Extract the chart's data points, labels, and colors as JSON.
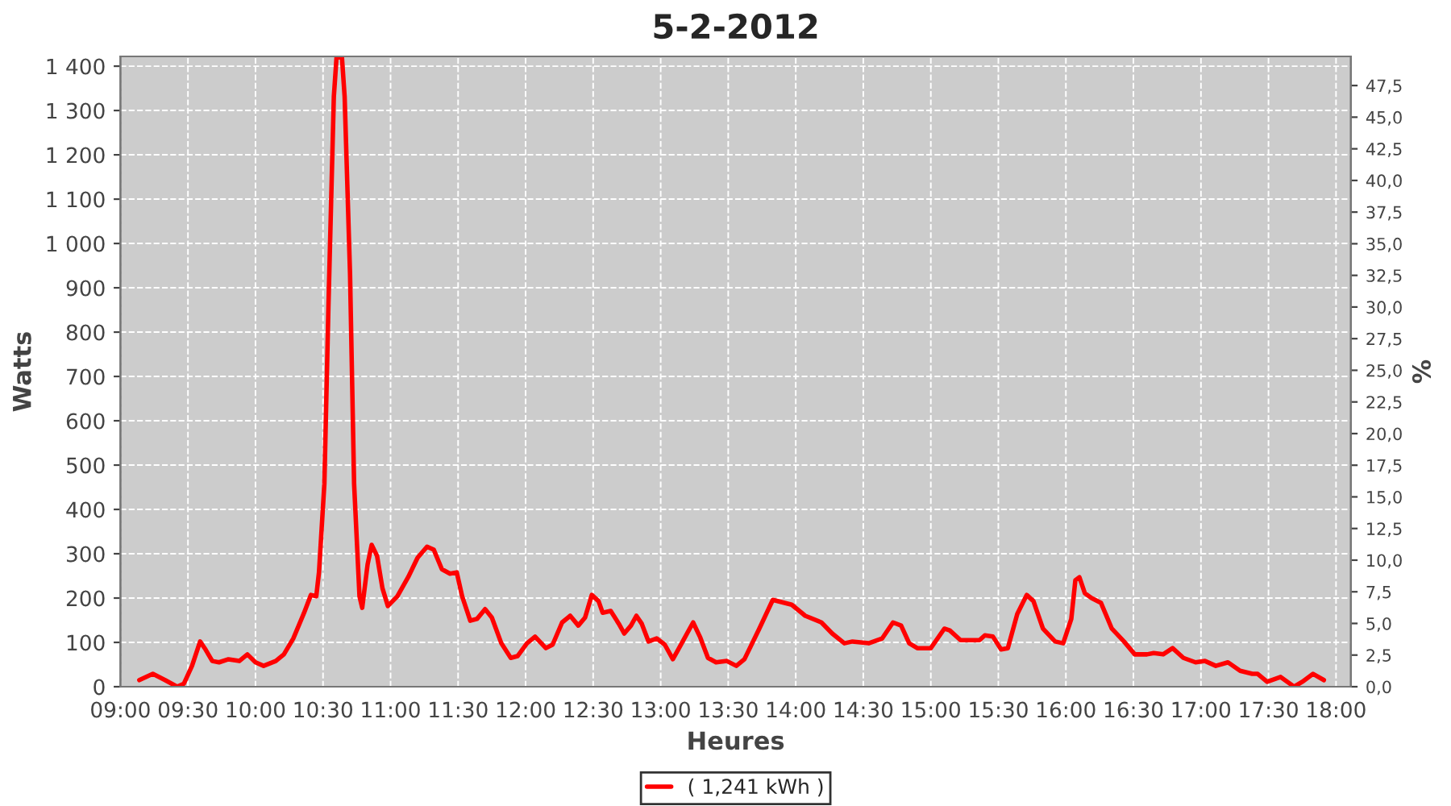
{
  "chart_data": {
    "type": "line",
    "title": "5-2-2012",
    "xlabel": "Heures",
    "ylabel": "Watts",
    "y2label": "%",
    "xlim": [
      9,
      18.11
    ],
    "ylim": [
      0,
      1422
    ],
    "y2lim": [
      0,
      49.8
    ],
    "xticks": [
      {
        "value": 9,
        "label": "09:00"
      },
      {
        "value": 9.5,
        "label": "09:30"
      },
      {
        "value": 10,
        "label": "10:00"
      },
      {
        "value": 10.5,
        "label": "10:30"
      },
      {
        "value": 11,
        "label": "11:00"
      },
      {
        "value": 11.5,
        "label": "11:30"
      },
      {
        "value": 12,
        "label": "12:00"
      },
      {
        "value": 12.5,
        "label": "12:30"
      },
      {
        "value": 13,
        "label": "13:00"
      },
      {
        "value": 13.5,
        "label": "13:30"
      },
      {
        "value": 14,
        "label": "14:00"
      },
      {
        "value": 14.5,
        "label": "14:30"
      },
      {
        "value": 15,
        "label": "15:00"
      },
      {
        "value": 15.5,
        "label": "15:30"
      },
      {
        "value": 16,
        "label": "16:00"
      },
      {
        "value": 16.5,
        "label": "16:30"
      },
      {
        "value": 17,
        "label": "17:00"
      },
      {
        "value": 17.5,
        "label": "17:30"
      },
      {
        "value": 18,
        "label": "18:00"
      }
    ],
    "yticks": [
      0,
      100,
      200,
      300,
      400,
      500,
      600,
      700,
      800,
      900,
      {
        "value": 1000,
        "label": "1 000"
      },
      {
        "value": 1100,
        "label": "1 100"
      },
      {
        "value": 1200,
        "label": "1 200"
      },
      {
        "value": 1300,
        "label": "1 300"
      },
      {
        "value": 1400,
        "label": "1 400"
      }
    ],
    "y2ticks": [
      {
        "value": 0,
        "label": "0,0"
      },
      {
        "value": 2.5,
        "label": "2,5"
      },
      {
        "value": 5,
        "label": "5,0"
      },
      {
        "value": 7.5,
        "label": "7,5"
      },
      {
        "value": 10,
        "label": "10,0"
      },
      {
        "value": 12.5,
        "label": "12,5"
      },
      {
        "value": 15,
        "label": "15,0"
      },
      {
        "value": 17.5,
        "label": "17,5"
      },
      {
        "value": 20,
        "label": "20,0"
      },
      {
        "value": 22.5,
        "label": "22,5"
      },
      {
        "value": 25,
        "label": "25,0"
      },
      {
        "value": 27.5,
        "label": "27,5"
      },
      {
        "value": 30,
        "label": "30,0"
      },
      {
        "value": 32.5,
        "label": "32,5"
      },
      {
        "value": 35,
        "label": "35,0"
      },
      {
        "value": 37.5,
        "label": "37,5"
      },
      {
        "value": 40,
        "label": "40,0"
      },
      {
        "value": 42.5,
        "label": "42,5"
      },
      {
        "value": 45,
        "label": "45,0"
      },
      {
        "value": 47.5,
        "label": "47,5"
      }
    ],
    "grid": true,
    "legend": "bottom",
    "marker": "none",
    "line_style": "solid",
    "series": [
      {
        "name": "( 1,241 kWh )",
        "color": "#ff0000",
        "x": [
          9.14,
          9.24,
          9.33,
          9.42,
          9.47,
          9.53,
          9.59,
          9.63,
          9.68,
          9.73,
          9.8,
          9.88,
          9.94,
          10.0,
          10.06,
          10.15,
          10.21,
          10.28,
          10.36,
          10.41,
          10.45,
          10.47,
          10.51,
          10.54,
          10.58,
          10.6,
          10.64,
          10.66,
          10.7,
          10.73,
          10.77,
          10.79,
          10.83,
          10.86,
          10.9,
          10.94,
          10.98,
          11.05,
          11.13,
          11.2,
          11.27,
          11.32,
          11.38,
          11.44,
          11.49,
          11.53,
          11.59,
          11.64,
          11.7,
          11.75,
          11.82,
          11.89,
          11.94,
          12.01,
          12.07,
          12.15,
          12.2,
          12.27,
          12.33,
          12.39,
          12.44,
          12.49,
          12.54,
          12.57,
          12.63,
          12.69,
          12.73,
          12.78,
          12.82,
          12.86,
          12.91,
          12.97,
          13.03,
          13.09,
          13.13,
          13.24,
          13.29,
          13.35,
          13.41,
          13.49,
          13.56,
          13.62,
          13.73,
          13.83,
          13.97,
          14.07,
          14.19,
          14.27,
          14.36,
          14.42,
          14.54,
          14.64,
          14.72,
          14.78,
          14.84,
          14.9,
          15.0,
          15.1,
          15.14,
          15.22,
          15.36,
          15.4,
          15.46,
          15.52,
          15.57,
          15.64,
          15.71,
          15.76,
          15.83,
          15.92,
          15.98,
          16.04,
          16.07,
          16.1,
          16.14,
          16.19,
          16.26,
          16.34,
          16.43,
          16.51,
          16.6,
          16.65,
          16.72,
          16.79,
          16.87,
          16.96,
          17.03,
          17.11,
          17.2,
          17.29,
          17.38,
          17.42,
          17.49,
          17.59,
          17.69,
          17.75,
          17.83,
          17.91
        ],
        "values": [
          15,
          29,
          15,
          0,
          7,
          47,
          102,
          84,
          58,
          55,
          62,
          58,
          73,
          55,
          47,
          58,
          73,
          109,
          167,
          207,
          204,
          258,
          458,
          858,
          1331,
          1420,
          1420,
          1331,
          931,
          458,
          204,
          178,
          276,
          320,
          295,
          222,
          182,
          204,
          247,
          291,
          316,
          309,
          265,
          255,
          258,
          204,
          149,
          153,
          175,
          156,
          98,
          65,
          69,
          98,
          113,
          87,
          95,
          145,
          160,
          138,
          156,
          207,
          193,
          167,
          171,
          142,
          120,
          138,
          160,
          142,
          102,
          109,
          95,
          62,
          84,
          145,
          113,
          65,
          55,
          58,
          47,
          62,
          131,
          196,
          185,
          160,
          145,
          120,
          98,
          102,
          98,
          109,
          145,
          138,
          98,
          87,
          87,
          131,
          127,
          105,
          105,
          116,
          113,
          84,
          87,
          164,
          207,
          193,
          131,
          102,
          98,
          153,
          240,
          247,
          211,
          200,
          189,
          131,
          102,
          73,
          73,
          76,
          73,
          87,
          65,
          55,
          58,
          47,
          55,
          36,
          29,
          29,
          11,
          22,
          0,
          11,
          29,
          15
        ]
      }
    ]
  }
}
